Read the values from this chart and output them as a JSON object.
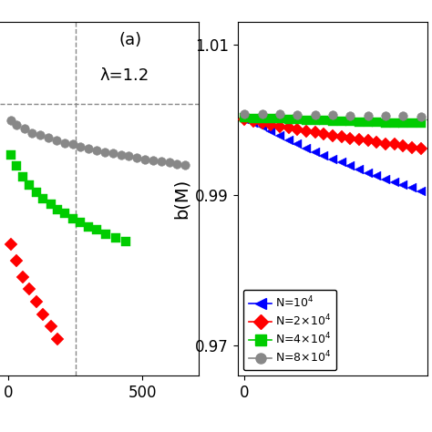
{
  "panel_a": {
    "annotation": "(a)",
    "lambda_text": "λ=1.2",
    "dashed_line_y": 0.0,
    "dashed_vline_x": 250,
    "series": [
      {
        "label": "N=2x10^4",
        "color": "#ff0000",
        "marker": "D",
        "xs": [
          10,
          30,
          55,
          80,
          105,
          130,
          160,
          185
        ],
        "ys": [
          -0.17,
          -0.19,
          -0.21,
          -0.225,
          -0.24,
          -0.255,
          -0.27,
          -0.285
        ]
      },
      {
        "label": "N=4x10^4",
        "color": "#00cc00",
        "marker": "s",
        "xs": [
          10,
          30,
          55,
          80,
          105,
          130,
          160,
          185,
          210,
          240,
          270,
          300,
          330,
          365,
          400,
          440
        ],
        "ys": [
          -0.062,
          -0.075,
          -0.088,
          -0.098,
          -0.107,
          -0.115,
          -0.122,
          -0.128,
          -0.133,
          -0.139,
          -0.144,
          -0.149,
          -0.153,
          -0.158,
          -0.162,
          -0.167
        ]
      },
      {
        "label": "N=8x10^4",
        "color": "#888888",
        "marker": "o",
        "xs": [
          10,
          30,
          60,
          90,
          120,
          150,
          180,
          210,
          240,
          270,
          300,
          330,
          360,
          390,
          420,
          450,
          480,
          510,
          540,
          570,
          600,
          630,
          660
        ],
        "ys": [
          -0.02,
          -0.025,
          -0.03,
          -0.035,
          -0.038,
          -0.041,
          -0.044,
          -0.047,
          -0.049,
          -0.052,
          -0.054,
          -0.056,
          -0.058,
          -0.06,
          -0.062,
          -0.063,
          -0.065,
          -0.067,
          -0.068,
          -0.07,
          -0.071,
          -0.073,
          -0.074
        ]
      }
    ],
    "xlim": [
      -30,
      710
    ],
    "ylim": [
      -0.33,
      0.1
    ],
    "xticks": [
      0,
      500
    ],
    "yticks": []
  },
  "panel_b": {
    "ylabel": "b(M)",
    "dashed_line_y": 1.0,
    "series": [
      {
        "label": "N=10$^4$",
        "color": "#0000ff",
        "marker": "<",
        "xs": [
          0,
          25,
          50,
          75,
          100,
          125,
          150,
          175,
          200,
          225,
          250,
          275,
          300,
          325,
          350,
          375,
          400,
          425,
          450,
          475,
          500
        ],
        "ys": [
          1.0,
          0.9995,
          0.999,
          0.9984,
          0.9978,
          0.9973,
          0.9967,
          0.9962,
          0.9957,
          0.9952,
          0.9947,
          0.9943,
          0.9938,
          0.9934,
          0.9929,
          0.9925,
          0.9921,
          0.9917,
          0.9913,
          0.9909,
          0.9905
        ]
      },
      {
        "label": "N=2×10$^4$",
        "color": "#ff0000",
        "marker": "D",
        "xs": [
          0,
          25,
          50,
          75,
          100,
          125,
          150,
          175,
          200,
          225,
          250,
          275,
          300,
          325,
          350,
          375,
          400,
          425,
          450,
          475,
          500
        ],
        "ys": [
          1.0,
          0.9998,
          0.9996,
          0.9993,
          0.9991,
          0.9989,
          0.9987,
          0.9985,
          0.9983,
          0.9981,
          0.9979,
          0.9977,
          0.9975,
          0.9974,
          0.9972,
          0.997,
          0.9968,
          0.9967,
          0.9965,
          0.9963,
          0.9962
        ]
      },
      {
        "label": "N=4×10$^4$",
        "color": "#00cc00",
        "marker": "s",
        "xs": [
          0,
          25,
          50,
          75,
          100,
          125,
          150,
          175,
          200,
          225,
          250,
          275,
          300,
          325,
          350,
          375,
          400,
          425,
          450,
          475,
          500
        ],
        "ys": [
          1.0003,
          1.0002,
          1.0001,
          1.0001,
          1.0001,
          1.0,
          1.0,
          0.9999,
          0.9999,
          0.9999,
          0.9998,
          0.9998,
          0.9998,
          0.9997,
          0.9997,
          0.9997,
          0.9996,
          0.9996,
          0.9996,
          0.9995,
          0.9995
        ]
      },
      {
        "label": "N=8×10$^4$",
        "color": "#888888",
        "marker": "o",
        "xs": [
          0,
          50,
          100,
          150,
          200,
          250,
          300,
          350,
          400,
          450,
          500
        ],
        "ys": [
          1.0008,
          1.0007,
          1.0007,
          1.0006,
          1.0006,
          1.0006,
          1.0005,
          1.0005,
          1.0005,
          1.0005,
          1.0004
        ]
      }
    ],
    "xlim": [
      -20,
      520
    ],
    "ylim": [
      0.966,
      1.013
    ],
    "xticks": [
      0
    ],
    "yticks": [
      0.97,
      0.99,
      1.01
    ],
    "ytick_labels": [
      "0.97",
      "0.99",
      "1.01"
    ]
  },
  "legend_labels": [
    "N=10$^4$",
    "N=2×10$^4$",
    "N=4×10$^4$",
    "N=8×10$^4$"
  ],
  "legend_colors": [
    "#0000ff",
    "#ff0000",
    "#00cc00",
    "#888888"
  ],
  "legend_markers": [
    "<",
    "D",
    "s",
    "o"
  ],
  "background_color": "#ffffff",
  "markersize_a": 7,
  "markersize_b": 7
}
